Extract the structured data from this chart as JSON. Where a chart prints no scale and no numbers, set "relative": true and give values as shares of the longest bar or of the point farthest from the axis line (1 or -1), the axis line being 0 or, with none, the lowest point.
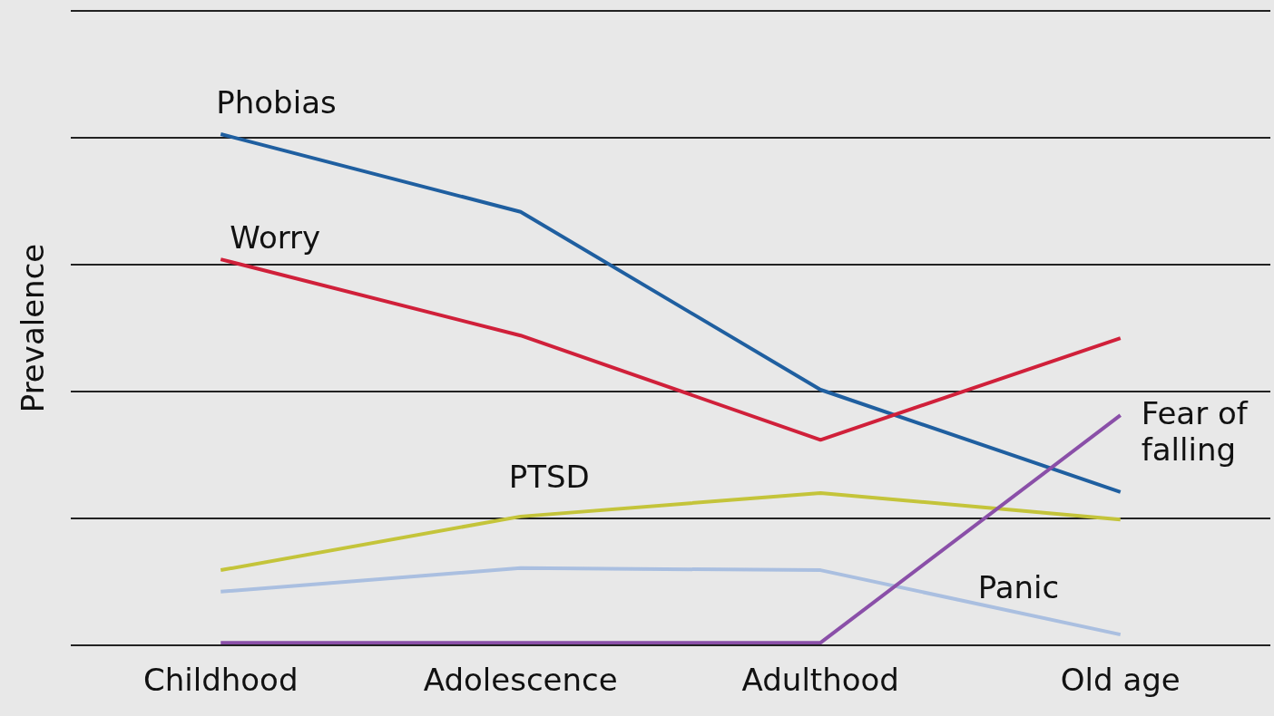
{
  "chart_data": {
    "type": "line",
    "ylabel": "Prevalence",
    "relative": true,
    "grid": "y",
    "legend": false,
    "categories": [
      "Childhood",
      "Adolescence",
      "Adulthood",
      "Old age"
    ],
    "series": [
      {
        "name": "Phobias",
        "color": "#1f5fa0",
        "values": [
          1,
          0.848,
          0.5,
          0.3
        ]
      },
      {
        "name": "Worry",
        "color": "#d0203a",
        "values": [
          0.755,
          0.606,
          0.402,
          0.601
        ]
      },
      {
        "name": "PTSD",
        "color": "#c4c43a",
        "values": [
          0.147,
          0.252,
          0.298,
          0.246
        ]
      },
      {
        "name": "Panic",
        "color": "#aabfe0",
        "values": [
          0.105,
          0.151,
          0.147,
          0.021
        ]
      },
      {
        "name": "Fear of falling",
        "color": "#8a4fa8",
        "values": [
          0.005,
          0.005,
          0.005,
          0.45
        ]
      }
    ]
  }
}
